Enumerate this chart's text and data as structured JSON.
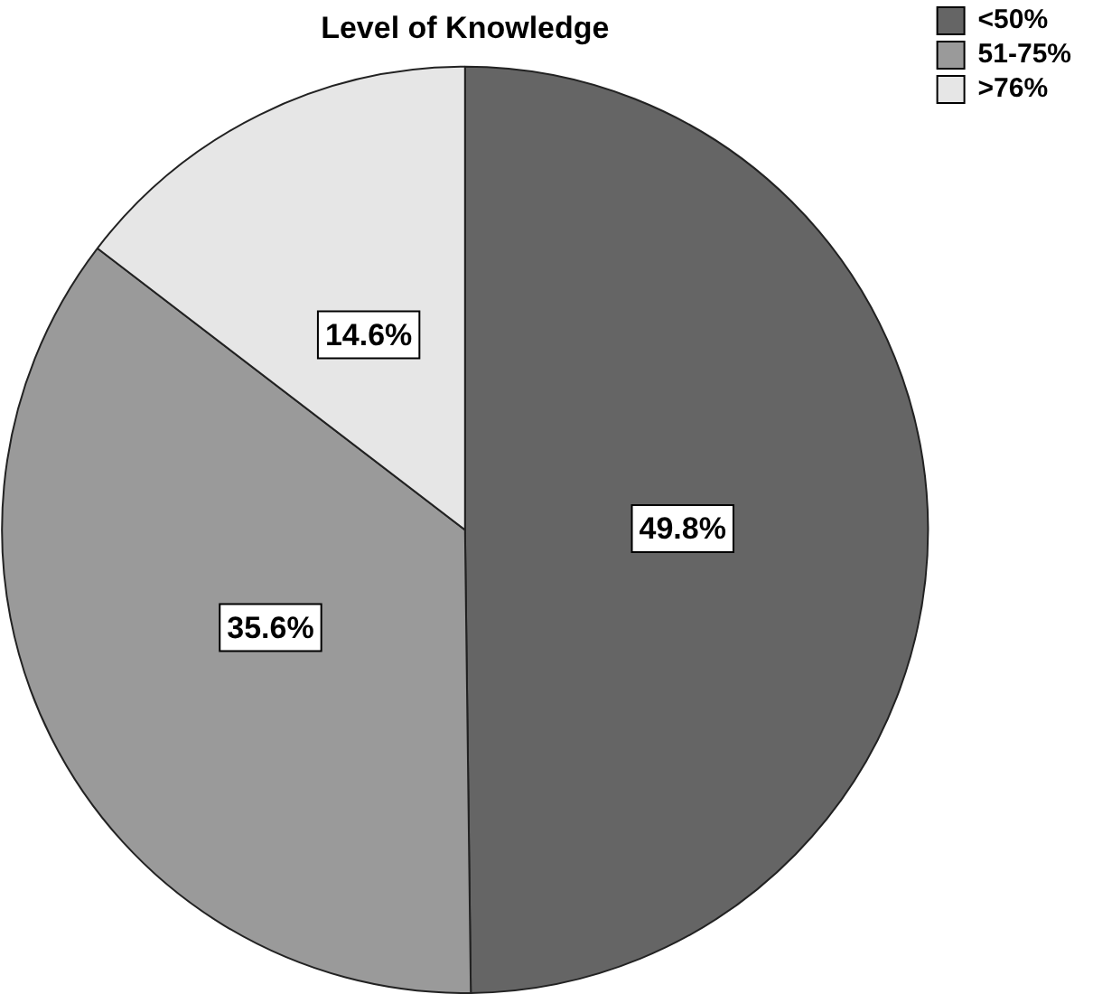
{
  "chart_data": {
    "type": "pie",
    "title": "Level of Knowledge",
    "categories": [
      "<50%",
      "51-75%",
      ">76%"
    ],
    "values": [
      49.8,
      35.6,
      14.6
    ],
    "colors": [
      "#656565",
      "#9a9a9a",
      "#e6e6e6"
    ],
    "value_labels": [
      "49.8%",
      "35.6%",
      "14.6%"
    ],
    "legend": "top right"
  }
}
